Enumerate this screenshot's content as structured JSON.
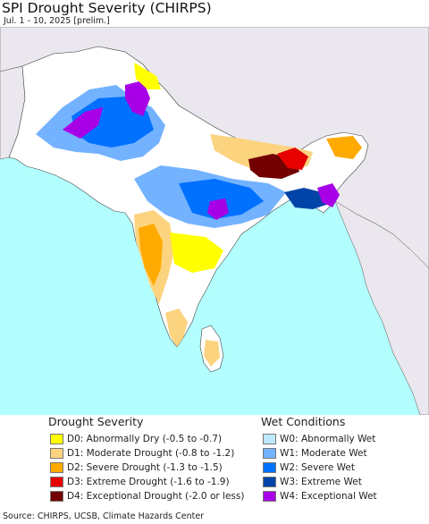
{
  "header": {
    "title": "SPI Drought Severity (CHIRPS)",
    "subtitle": "Jul. 1 - 10, 2025 [prelim.]"
  },
  "legend": {
    "drought": {
      "heading": "Drought Severity",
      "items": [
        {
          "label": "D0: Abnormally Dry (-0.5 to -0.7)",
          "color": "#ffff00"
        },
        {
          "label": "D1: Moderate Drought (-0.8 to -1.2)",
          "color": "#fcd37f"
        },
        {
          "label": "D2: Severe Drought (-1.3 to -1.5)",
          "color": "#ffaa00"
        },
        {
          "label": "D3: Extreme Drought (-1.6 to -1.9)",
          "color": "#e60000"
        },
        {
          "label": "D4: Exceptional Drought (-2.0 or less)",
          "color": "#730000"
        }
      ]
    },
    "wet": {
      "heading": "Wet Conditions",
      "items": [
        {
          "label": "W0: Abnormally Wet",
          "color": "#bee8ff"
        },
        {
          "label": "W1: Moderate Wet",
          "color": "#73b2ff"
        },
        {
          "label": "W2: Severe Wet",
          "color": "#0070ff"
        },
        {
          "label": "W3: Extreme Wet",
          "color": "#0044a8"
        },
        {
          "label": "W4: Exceptional Wet",
          "color": "#a800e6"
        }
      ]
    }
  },
  "footer": {
    "source": "Source: CHIRPS, UCSB, Climate Hazards Center"
  },
  "map": {
    "ocean_color": "#b3ffff",
    "outside_land_color": "#ebe7ee",
    "region_land_color": "#ffffff"
  }
}
